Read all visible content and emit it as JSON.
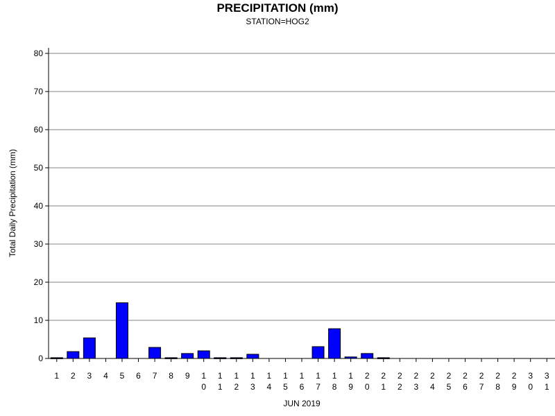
{
  "chart_data": {
    "type": "bar",
    "title": "PRECIPITATION (mm)",
    "subtitle": "STATION=HOG2",
    "xlabel": "JUN 2019",
    "ylabel": "Total Daily Precipitation (mm)",
    "ylim": [
      0,
      80
    ],
    "yticks": [
      0,
      10,
      20,
      30,
      40,
      50,
      60,
      70,
      80
    ],
    "grid": true,
    "categories": [
      "1",
      "2",
      "3",
      "4",
      "5",
      "6",
      "7",
      "8",
      "9",
      "10",
      "11",
      "12",
      "13",
      "14",
      "15",
      "16",
      "17",
      "18",
      "19",
      "20",
      "21",
      "22",
      "23",
      "24",
      "25",
      "26",
      "27",
      "28",
      "29",
      "30",
      "31"
    ],
    "values": [
      0.2,
      1.8,
      5.4,
      null,
      14.6,
      null,
      2.9,
      0.2,
      1.3,
      2.0,
      0.2,
      0.2,
      1.1,
      null,
      null,
      null,
      3.1,
      7.8,
      0.4,
      1.3,
      0.2,
      null,
      null,
      null,
      null,
      null,
      null,
      null,
      null,
      null,
      null
    ],
    "bar_color": "#0000ff",
    "bar_edge": "#000000"
  }
}
